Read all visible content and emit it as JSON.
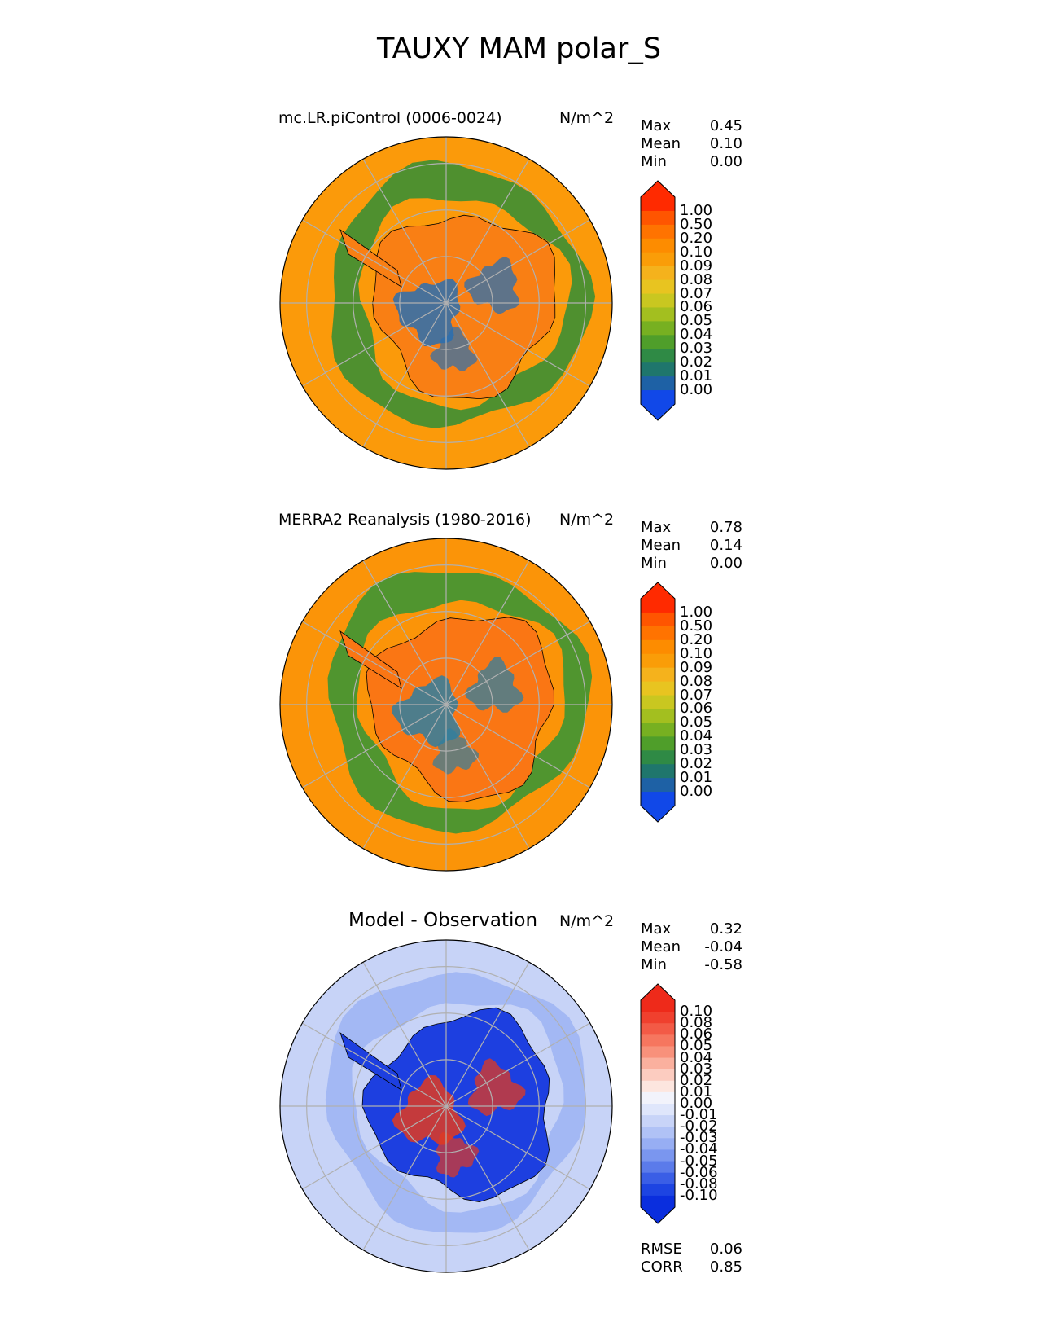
{
  "figure_title": "TAUXY MAM polar_S",
  "chart_data": [
    {
      "type": "heatmap",
      "projection": "south polar stereographic",
      "title": "mc.LR.piControl (0006-0024)",
      "units": "N/m^2",
      "stats": [
        {
          "label": "Max",
          "value": "0.45"
        },
        {
          "label": "Mean",
          "value": "0.10"
        },
        {
          "label": "Min",
          "value": "0.00"
        }
      ],
      "colorbar": {
        "ticks": [
          "1.00",
          "0.50",
          "0.20",
          "0.10",
          "0.09",
          "0.08",
          "0.07",
          "0.06",
          "0.05",
          "0.04",
          "0.03",
          "0.02",
          "0.01",
          "0.00"
        ],
        "colors": [
          "#ff2a00",
          "#ff5500",
          "#ff7300",
          "#fd8c00",
          "#fa9d08",
          "#f5b21c",
          "#e8c420",
          "#c9c720",
          "#a3bf1f",
          "#77b021",
          "#4f9e2a",
          "#2f8a45",
          "#1f766c",
          "#1e61a5",
          "#1148e8"
        ]
      },
      "field": {
        "ocean": "#fb9a0a",
        "ring": "#3c8f33",
        "interior": "#f97f14",
        "patches": "#2a6fb0"
      }
    },
    {
      "type": "heatmap",
      "projection": "south polar stereographic",
      "title": "MERRA2 Reanalysis (1980-2016)",
      "units": "N/m^2",
      "stats": [
        {
          "label": "Max",
          "value": "0.78"
        },
        {
          "label": "Mean",
          "value": "0.14"
        },
        {
          "label": "Min",
          "value": "0.00"
        }
      ],
      "colorbar": {
        "ticks": [
          "1.00",
          "0.50",
          "0.20",
          "0.10",
          "0.09",
          "0.08",
          "0.07",
          "0.06",
          "0.05",
          "0.04",
          "0.03",
          "0.02",
          "0.01",
          "0.00"
        ],
        "colors": [
          "#ff2a00",
          "#ff5500",
          "#ff7300",
          "#fd8c00",
          "#fa9d08",
          "#f5b21c",
          "#e8c420",
          "#c9c720",
          "#a3bf1f",
          "#77b021",
          "#4f9e2a",
          "#2f8a45",
          "#1f766c",
          "#1e61a5",
          "#1148e8"
        ]
      },
      "field": {
        "ocean": "#fb9408",
        "ring": "#3d9534",
        "interior": "#fa7614",
        "patches": "#2f7fa0"
      }
    },
    {
      "type": "heatmap",
      "projection": "south polar stereographic",
      "title": "Model - Observation",
      "units": "N/m^2",
      "stats": [
        {
          "label": "Max",
          "value": "0.32"
        },
        {
          "label": "Mean",
          "value": "-0.04"
        },
        {
          "label": "Min",
          "value": "-0.58"
        }
      ],
      "colorbar": {
        "ticks": [
          "0.10",
          "0.08",
          "0.06",
          "0.05",
          "0.04",
          "0.03",
          "0.02",
          "0.01",
          "0.00",
          "-0.01",
          "-0.02",
          "-0.03",
          "-0.04",
          "-0.05",
          "-0.06",
          "-0.08",
          "-0.10"
        ],
        "colors": [
          "#ee2a1a",
          "#f0402e",
          "#f35a46",
          "#f6765f",
          "#f8917b",
          "#fab09e",
          "#fcccc0",
          "#fde6df",
          "#f2f3fb",
          "#dfe6fb",
          "#c8d4f8",
          "#b0c2f6",
          "#97aef3",
          "#7a96ef",
          "#5b7bea",
          "#3a5ee6",
          "#1d44e2",
          "#0a2ede"
        ]
      },
      "field": {
        "ocean": "#c7d3f7",
        "ring": "#9fb5f3",
        "interior": "#1d3fe0",
        "patches": "#e2391f"
      },
      "metrics": [
        {
          "label": "RMSE",
          "value": "0.06"
        },
        {
          "label": "CORR",
          "value": "0.85"
        }
      ]
    }
  ]
}
